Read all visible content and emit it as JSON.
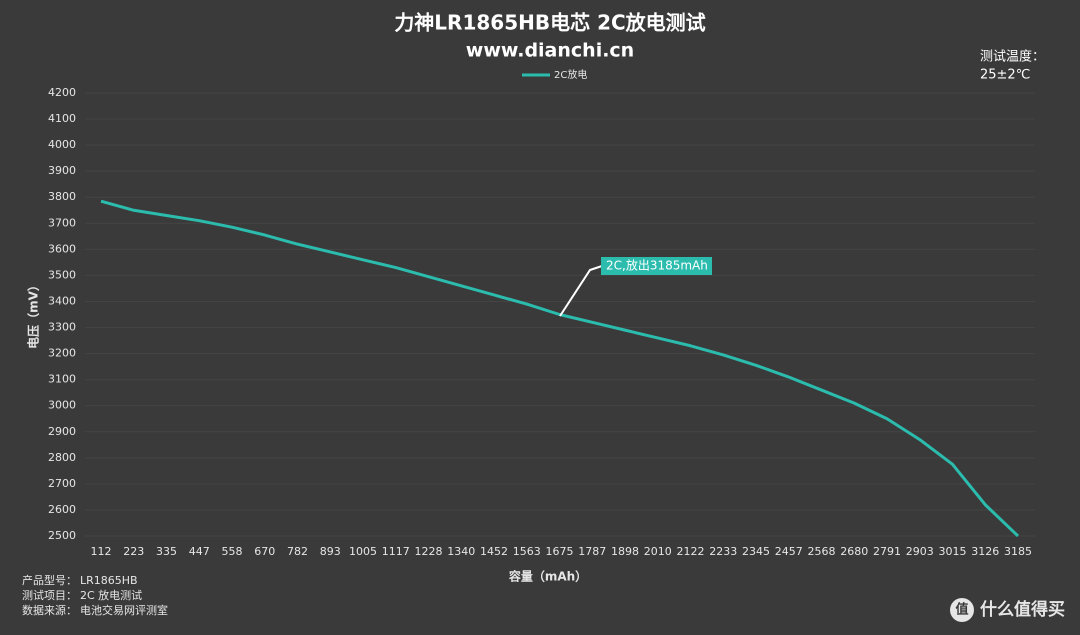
{
  "chart_data": {
    "type": "line",
    "title": "力神LR1865HB电芯 2C放电测试",
    "subtitle": "www.dianchi.cn",
    "test_condition": {
      "label": "测试温度：",
      "value": "25±2℃"
    },
    "x_label": "容量（mAh）",
    "y_label": "电压（mV）",
    "categories": [
      112,
      223,
      335,
      447,
      558,
      670,
      782,
      893,
      1005,
      1117,
      1228,
      1340,
      1452,
      1563,
      1675,
      1787,
      1898,
      2010,
      2122,
      2233,
      2345,
      2457,
      2568,
      2680,
      2791,
      2903,
      3015,
      3126,
      3185
    ],
    "series": [
      {
        "name": "2C放电",
        "color": "#2bbcae",
        "values": [
          3785,
          3750,
          3730,
          3710,
          3685,
          3655,
          3620,
          3590,
          3560,
          3530,
          3495,
          3460,
          3425,
          3390,
          3350,
          3320,
          3290,
          3260,
          3230,
          3195,
          3155,
          3110,
          3060,
          3010,
          2950,
          2870,
          2775,
          2620,
          2500
        ]
      }
    ],
    "ylim": [
      2500,
      4200
    ],
    "yticks": [
      2500,
      2600,
      2700,
      2800,
      2900,
      3000,
      3100,
      3200,
      3300,
      3400,
      3500,
      3600,
      3700,
      3800,
      3900,
      4000,
      4100,
      4200
    ],
    "grid": true,
    "legend": "top",
    "annotation": "2C,放出3185mAh",
    "notes": [
      [
        "产品型号：",
        "LR1865HB"
      ],
      [
        "测试项目：",
        "2C 放电测试"
      ],
      [
        "数据来源：",
        "电池交易网评测室"
      ]
    ],
    "watermark": {
      "icon": "值",
      "text": "什么值得买"
    }
  }
}
